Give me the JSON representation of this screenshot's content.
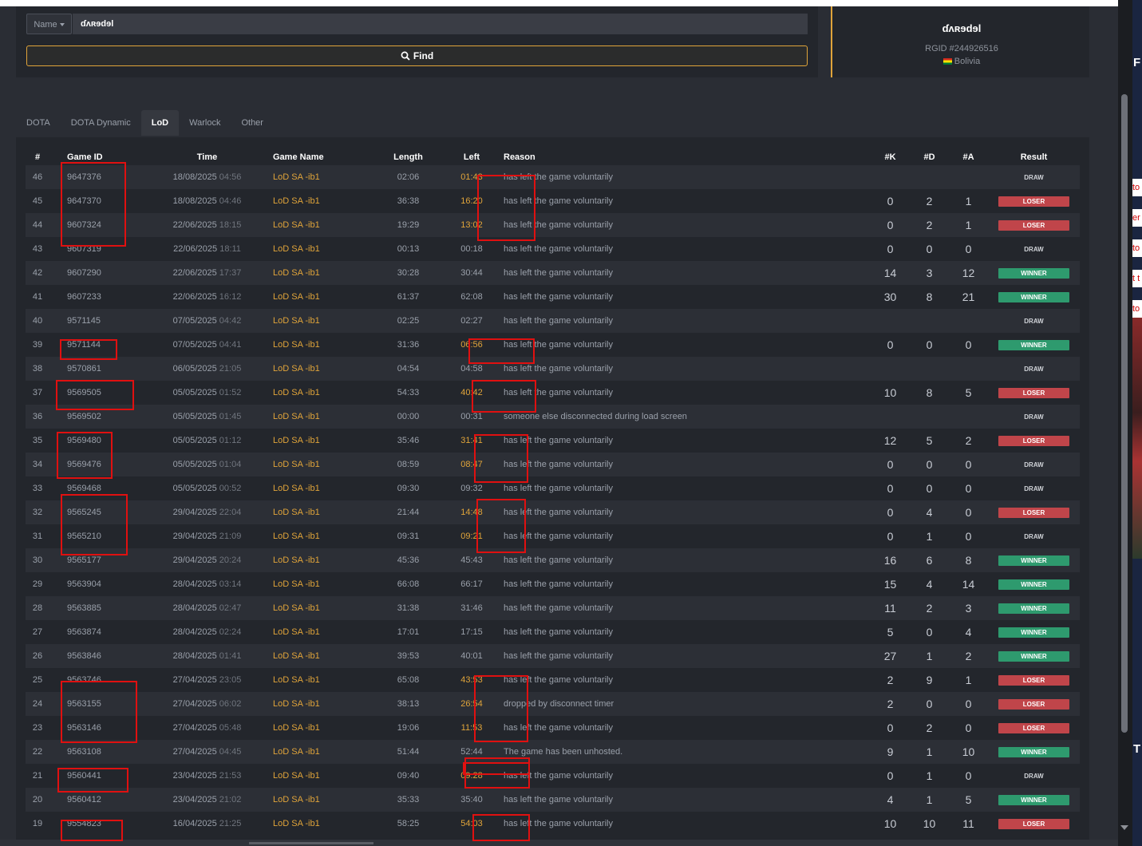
{
  "search": {
    "select_label": "Name",
    "query": "ɗʌʀɘdɘl",
    "find_label": "Find"
  },
  "profile": {
    "name": "ɗʌʀɘdɘl",
    "rgid": "RGID #244926516",
    "country": "Bolivia"
  },
  "tabs": [
    {
      "label": "DOTA"
    },
    {
      "label": "DOTA Dynamic"
    },
    {
      "label": "LoD",
      "active": true
    },
    {
      "label": "Warlock"
    },
    {
      "label": "Other"
    }
  ],
  "columns": {
    "num": "#",
    "game_id": "Game ID",
    "time": "Time",
    "game_name": "Game Name",
    "length": "Length",
    "left": "Left",
    "reason": "Reason",
    "k": "#K",
    "d": "#D",
    "a": "#A",
    "result": "Result"
  },
  "rows": [
    {
      "num": "46",
      "gid": "9647376",
      "date": "18/08/2025",
      "clock": "04:56",
      "name": "LoD SA -ib1",
      "length": "02:06",
      "left": "01:43",
      "hl": true,
      "reason": "has left the game voluntarily",
      "k": "",
      "d": "",
      "a": "",
      "result": "DRAW"
    },
    {
      "num": "45",
      "gid": "9647370",
      "date": "18/08/2025",
      "clock": "04:46",
      "name": "LoD SA -ib1",
      "length": "36:38",
      "left": "16:20",
      "hl": true,
      "reason": "has left the game voluntarily",
      "k": "0",
      "d": "2",
      "a": "1",
      "result": "LOSER"
    },
    {
      "num": "44",
      "gid": "9607324",
      "date": "22/06/2025",
      "clock": "18:15",
      "name": "LoD SA -ib1",
      "length": "19:29",
      "left": "13:02",
      "hl": true,
      "reason": "has left the game voluntarily",
      "k": "0",
      "d": "2",
      "a": "1",
      "result": "LOSER"
    },
    {
      "num": "43",
      "gid": "9607319",
      "date": "22/06/2025",
      "clock": "18:11",
      "name": "LoD SA -ib1",
      "length": "00:13",
      "left": "00:18",
      "hl": false,
      "reason": "has left the game voluntarily",
      "k": "0",
      "d": "0",
      "a": "0",
      "result": "DRAW"
    },
    {
      "num": "42",
      "gid": "9607290",
      "date": "22/06/2025",
      "clock": "17:37",
      "name": "LoD SA -ib1",
      "length": "30:28",
      "left": "30:44",
      "hl": false,
      "reason": "has left the game voluntarily",
      "k": "14",
      "d": "3",
      "a": "12",
      "result": "WINNER"
    },
    {
      "num": "41",
      "gid": "9607233",
      "date": "22/06/2025",
      "clock": "16:12",
      "name": "LoD SA -ib1",
      "length": "61:37",
      "left": "62:08",
      "hl": false,
      "reason": "has left the game voluntarily",
      "k": "30",
      "d": "8",
      "a": "21",
      "result": "WINNER"
    },
    {
      "num": "40",
      "gid": "9571145",
      "date": "07/05/2025",
      "clock": "04:42",
      "name": "LoD SA -ib1",
      "length": "02:25",
      "left": "02:27",
      "hl": false,
      "reason": "has left the game voluntarily",
      "k": "",
      "d": "",
      "a": "",
      "result": "DRAW"
    },
    {
      "num": "39",
      "gid": "9571144",
      "date": "07/05/2025",
      "clock": "04:41",
      "name": "LoD SA -ib1",
      "length": "31:36",
      "left": "06:56",
      "hl": true,
      "reason": "has left the game voluntarily",
      "k": "0",
      "d": "0",
      "a": "0",
      "result": "WINNER"
    },
    {
      "num": "38",
      "gid": "9570861",
      "date": "06/05/2025",
      "clock": "21:05",
      "name": "LoD SA -ib1",
      "length": "04:54",
      "left": "04:58",
      "hl": false,
      "reason": "has left the game voluntarily",
      "k": "",
      "d": "",
      "a": "",
      "result": "DRAW"
    },
    {
      "num": "37",
      "gid": "9569505",
      "date": "05/05/2025",
      "clock": "01:52",
      "name": "LoD SA -ib1",
      "length": "54:33",
      "left": "40:42",
      "hl": true,
      "reason": "has left the game voluntarily",
      "k": "10",
      "d": "8",
      "a": "5",
      "result": "LOSER"
    },
    {
      "num": "36",
      "gid": "9569502",
      "date": "05/05/2025",
      "clock": "01:45",
      "name": "LoD SA -ib1",
      "length": "00:00",
      "left": "00:31",
      "hl": false,
      "reason": "someone else disconnected during load screen",
      "k": "",
      "d": "",
      "a": "",
      "result": "DRAW"
    },
    {
      "num": "35",
      "gid": "9569480",
      "date": "05/05/2025",
      "clock": "01:12",
      "name": "LoD SA -ib1",
      "length": "35:46",
      "left": "31:41",
      "hl": true,
      "reason": "has left the game voluntarily",
      "k": "12",
      "d": "5",
      "a": "2",
      "result": "LOSER"
    },
    {
      "num": "34",
      "gid": "9569476",
      "date": "05/05/2025",
      "clock": "01:04",
      "name": "LoD SA -ib1",
      "length": "08:59",
      "left": "08:47",
      "hl": true,
      "reason": "has left the game voluntarily",
      "k": "0",
      "d": "0",
      "a": "0",
      "result": "DRAW"
    },
    {
      "num": "33",
      "gid": "9569468",
      "date": "05/05/2025",
      "clock": "00:52",
      "name": "LoD SA -ib1",
      "length": "09:30",
      "left": "09:32",
      "hl": false,
      "reason": "has left the game voluntarily",
      "k": "0",
      "d": "0",
      "a": "0",
      "result": "DRAW"
    },
    {
      "num": "32",
      "gid": "9565245",
      "date": "29/04/2025",
      "clock": "22:04",
      "name": "LoD SA -ib1",
      "length": "21:44",
      "left": "14:48",
      "hl": true,
      "reason": "has left the game voluntarily",
      "k": "0",
      "d": "4",
      "a": "0",
      "result": "LOSER"
    },
    {
      "num": "31",
      "gid": "9565210",
      "date": "29/04/2025",
      "clock": "21:09",
      "name": "LoD SA -ib1",
      "length": "09:31",
      "left": "09:21",
      "hl": true,
      "reason": "has left the game voluntarily",
      "k": "0",
      "d": "1",
      "a": "0",
      "result": "DRAW"
    },
    {
      "num": "30",
      "gid": "9565177",
      "date": "29/04/2025",
      "clock": "20:24",
      "name": "LoD SA -ib1",
      "length": "45:36",
      "left": "45:43",
      "hl": false,
      "reason": "has left the game voluntarily",
      "k": "16",
      "d": "6",
      "a": "8",
      "result": "WINNER"
    },
    {
      "num": "29",
      "gid": "9563904",
      "date": "28/04/2025",
      "clock": "03:14",
      "name": "LoD SA -ib1",
      "length": "66:08",
      "left": "66:17",
      "hl": false,
      "reason": "has left the game voluntarily",
      "k": "15",
      "d": "4",
      "a": "14",
      "result": "WINNER"
    },
    {
      "num": "28",
      "gid": "9563885",
      "date": "28/04/2025",
      "clock": "02:47",
      "name": "LoD SA -ib1",
      "length": "31:38",
      "left": "31:46",
      "hl": false,
      "reason": "has left the game voluntarily",
      "k": "11",
      "d": "2",
      "a": "3",
      "result": "WINNER"
    },
    {
      "num": "27",
      "gid": "9563874",
      "date": "28/04/2025",
      "clock": "02:24",
      "name": "LoD SA -ib1",
      "length": "17:01",
      "left": "17:15",
      "hl": false,
      "reason": "has left the game voluntarily",
      "k": "5",
      "d": "0",
      "a": "4",
      "result": "WINNER"
    },
    {
      "num": "26",
      "gid": "9563846",
      "date": "28/04/2025",
      "clock": "01:41",
      "name": "LoD SA -ib1",
      "length": "39:53",
      "left": "40:01",
      "hl": false,
      "reason": "has left the game voluntarily",
      "k": "27",
      "d": "1",
      "a": "2",
      "result": "WINNER"
    },
    {
      "num": "25",
      "gid": "9563746",
      "date": "27/04/2025",
      "clock": "23:05",
      "name": "LoD SA -ib1",
      "length": "65:08",
      "left": "43:53",
      "hl": true,
      "reason": "has left the game voluntarily",
      "k": "2",
      "d": "9",
      "a": "1",
      "result": "LOSER"
    },
    {
      "num": "24",
      "gid": "9563155",
      "date": "27/04/2025",
      "clock": "06:02",
      "name": "LoD SA -ib1",
      "length": "38:13",
      "left": "26:54",
      "hl": true,
      "reason": "dropped by disconnect timer",
      "k": "2",
      "d": "0",
      "a": "0",
      "result": "LOSER"
    },
    {
      "num": "23",
      "gid": "9563146",
      "date": "27/04/2025",
      "clock": "05:48",
      "name": "LoD SA -ib1",
      "length": "19:06",
      "left": "11:53",
      "hl": true,
      "reason": "has left the game voluntarily",
      "k": "0",
      "d": "2",
      "a": "0",
      "result": "LOSER"
    },
    {
      "num": "22",
      "gid": "9563108",
      "date": "27/04/2025",
      "clock": "04:45",
      "name": "LoD SA -ib1",
      "length": "51:44",
      "left": "52:44",
      "hl": false,
      "reason": "The game has been unhosted.",
      "k": "9",
      "d": "1",
      "a": "10",
      "result": "WINNER"
    },
    {
      "num": "21",
      "gid": "9560441",
      "date": "23/04/2025",
      "clock": "21:53",
      "name": "LoD SA -ib1",
      "length": "09:40",
      "left": "09:28",
      "hl": true,
      "reason": "has left the game voluntarily",
      "k": "0",
      "d": "1",
      "a": "0",
      "result": "DRAW"
    },
    {
      "num": "20",
      "gid": "9560412",
      "date": "23/04/2025",
      "clock": "21:02",
      "name": "LoD SA -ib1",
      "length": "35:33",
      "left": "35:40",
      "hl": false,
      "reason": "has left the game voluntarily",
      "k": "4",
      "d": "1",
      "a": "5",
      "result": "WINNER"
    },
    {
      "num": "19",
      "gid": "9554823",
      "date": "16/04/2025",
      "clock": "21:25",
      "name": "LoD SA -ib1",
      "length": "58:25",
      "left": "54:03",
      "hl": true,
      "reason": "has left the game voluntarily",
      "k": "10",
      "d": "10",
      "a": "11",
      "result": "LOSER"
    }
  ],
  "side": {
    "snippets": [
      "to",
      "er",
      "to",
      "t t",
      "to"
    ],
    "letters": [
      "F",
      "T"
    ]
  },
  "colors": {
    "accent": "#e0a43a",
    "loser": "#c0454a",
    "winner": "#2e9a6e",
    "annotation": "#e01010"
  }
}
